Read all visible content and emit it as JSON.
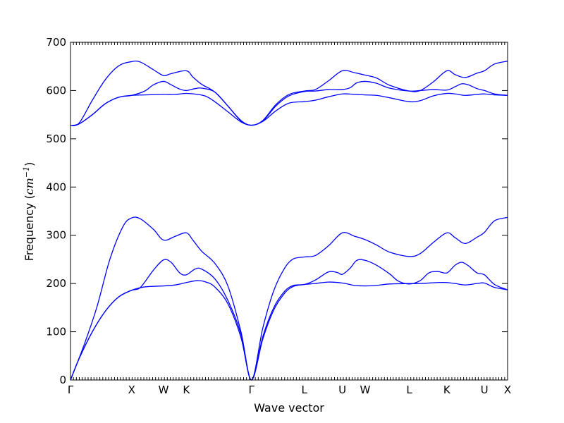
{
  "chart_data": {
    "type": "line",
    "title": "",
    "xlabel": "Wave vector",
    "ylabel": "Frequency",
    "ylabel_unit": "cm",
    "ylabel_unit_exp": "−1",
    "ylim": [
      0,
      700
    ],
    "yticks": [
      0,
      100,
      200,
      300,
      400,
      500,
      600,
      700
    ],
    "xlim": [
      0,
      100
    ],
    "grid": false,
    "legend": "none",
    "line_color": "#0000ff",
    "xticks": [
      {
        "label": "Γ",
        "x": 0
      },
      {
        "label": "X",
        "x": 14.0
      },
      {
        "label": "W",
        "x": 21.3
      },
      {
        "label": "K",
        "x": 26.5
      },
      {
        "label": "Γ",
        "x": 41.4
      },
      {
        "label": "L",
        "x": 53.5
      },
      {
        "label": "U",
        "x": 62.2
      },
      {
        "label": "W",
        "x": 67.4
      },
      {
        "label": "L",
        "x": 77.5
      },
      {
        "label": "K",
        "x": 86.1
      },
      {
        "label": "U",
        "x": 94.7
      },
      {
        "label": "X",
        "x": 100
      }
    ],
    "series": [
      {
        "values": [
          [
            0,
            0
          ],
          [
            3,
            70
          ],
          [
            6,
            150
          ],
          [
            9,
            250
          ],
          [
            12,
            318
          ],
          [
            14,
            336
          ],
          [
            16,
            334
          ],
          [
            19,
            312
          ],
          [
            21.3,
            290
          ],
          [
            24,
            298
          ],
          [
            26.5,
            305
          ],
          [
            28,
            290
          ],
          [
            30,
            267
          ],
          [
            33,
            242
          ],
          [
            36,
            195
          ],
          [
            39,
            100
          ],
          [
            41.4,
            0
          ],
          [
            44,
            108
          ],
          [
            46.5,
            185
          ],
          [
            49,
            232
          ],
          [
            51,
            251
          ],
          [
            53.5,
            255
          ],
          [
            56,
            258
          ],
          [
            59,
            278
          ],
          [
            62.2,
            305
          ],
          [
            65,
            298
          ],
          [
            67.4,
            291
          ],
          [
            70,
            280
          ],
          [
            73,
            265
          ],
          [
            77.5,
            256
          ],
          [
            80,
            262
          ],
          [
            83,
            285
          ],
          [
            86.1,
            305
          ],
          [
            88,
            295
          ],
          [
            90.3,
            283
          ],
          [
            93,
            296
          ],
          [
            94.7,
            306
          ],
          [
            97,
            330
          ],
          [
            100,
            337
          ]
        ]
      },
      {
        "values": [
          [
            0,
            0
          ],
          [
            2,
            45
          ],
          [
            5,
            100
          ],
          [
            8,
            143
          ],
          [
            11,
            172
          ],
          [
            14,
            186
          ],
          [
            16,
            192
          ],
          [
            19,
            228
          ],
          [
            21.3,
            249
          ],
          [
            23,
            244
          ],
          [
            25,
            222
          ],
          [
            26.5,
            218
          ],
          [
            28.5,
            230
          ],
          [
            30,
            230
          ],
          [
            33,
            210
          ],
          [
            36,
            165
          ],
          [
            39,
            95
          ],
          [
            41.4,
            0
          ],
          [
            44,
            90
          ],
          [
            46.5,
            150
          ],
          [
            49,
            184
          ],
          [
            51,
            196
          ],
          [
            53.5,
            198
          ],
          [
            56,
            207
          ],
          [
            59,
            224
          ],
          [
            61,
            223
          ],
          [
            62.2,
            219
          ],
          [
            64,
            232
          ],
          [
            65.5,
            248
          ],
          [
            67.4,
            248
          ],
          [
            70,
            238
          ],
          [
            73,
            220
          ],
          [
            75,
            205
          ],
          [
            77.5,
            199
          ],
          [
            80,
            206
          ],
          [
            82,
            222
          ],
          [
            84,
            225
          ],
          [
            86.1,
            222
          ],
          [
            88,
            238
          ],
          [
            89.5,
            244
          ],
          [
            91,
            237
          ],
          [
            93,
            222
          ],
          [
            94.7,
            218
          ],
          [
            97,
            198
          ],
          [
            100,
            187
          ]
        ]
      },
      {
        "values": [
          [
            0,
            0
          ],
          [
            2,
            45
          ],
          [
            5,
            100
          ],
          [
            8,
            143
          ],
          [
            11,
            172
          ],
          [
            14,
            186
          ],
          [
            17,
            193
          ],
          [
            21.3,
            195
          ],
          [
            24,
            197
          ],
          [
            26.5,
            202
          ],
          [
            29,
            206
          ],
          [
            31,
            203
          ],
          [
            33,
            193
          ],
          [
            36,
            158
          ],
          [
            39,
            88
          ],
          [
            41.4,
            0
          ],
          [
            44,
            85
          ],
          [
            46.5,
            145
          ],
          [
            49,
            180
          ],
          [
            51,
            194
          ],
          [
            53.5,
            198
          ],
          [
            56,
            200
          ],
          [
            59,
            203
          ],
          [
            62.2,
            201
          ],
          [
            65,
            196
          ],
          [
            67.4,
            195
          ],
          [
            70,
            196
          ],
          [
            73,
            199
          ],
          [
            77.5,
            200
          ],
          [
            80,
            200
          ],
          [
            84,
            202
          ],
          [
            86.1,
            202
          ],
          [
            88,
            200
          ],
          [
            90.3,
            197
          ],
          [
            93,
            200
          ],
          [
            94.7,
            201
          ],
          [
            97,
            192
          ],
          [
            100,
            187
          ]
        ]
      },
      {
        "values": [
          [
            0,
            527
          ],
          [
            2,
            533
          ],
          [
            5,
            580
          ],
          [
            8,
            623
          ],
          [
            11,
            651
          ],
          [
            14,
            660
          ],
          [
            16,
            659
          ],
          [
            19,
            643
          ],
          [
            21.3,
            631
          ],
          [
            23,
            635
          ],
          [
            26.5,
            641
          ],
          [
            28,
            628
          ],
          [
            30,
            613
          ],
          [
            33,
            597
          ],
          [
            36,
            568
          ],
          [
            39,
            538
          ],
          [
            41.4,
            528
          ],
          [
            44,
            538
          ],
          [
            47,
            571
          ],
          [
            50,
            592
          ],
          [
            53.5,
            599
          ],
          [
            56,
            602
          ],
          [
            59,
            620
          ],
          [
            62.2,
            641
          ],
          [
            65,
            637
          ],
          [
            67.4,
            632
          ],
          [
            70,
            626
          ],
          [
            73,
            611
          ],
          [
            77.5,
            599
          ],
          [
            80,
            600
          ],
          [
            83,
            618
          ],
          [
            86.1,
            641
          ],
          [
            88,
            633
          ],
          [
            90.3,
            627
          ],
          [
            93,
            636
          ],
          [
            94.7,
            641
          ],
          [
            97,
            655
          ],
          [
            100,
            661
          ]
        ]
      },
      {
        "values": [
          [
            0,
            527
          ],
          [
            2,
            531
          ],
          [
            5,
            550
          ],
          [
            8,
            573
          ],
          [
            11,
            586
          ],
          [
            14,
            590
          ],
          [
            17,
            599
          ],
          [
            19,
            612
          ],
          [
            21.3,
            619
          ],
          [
            23,
            612
          ],
          [
            25,
            603
          ],
          [
            26.5,
            600
          ],
          [
            28.5,
            604
          ],
          [
            30,
            605
          ],
          [
            33,
            597
          ],
          [
            36,
            568
          ],
          [
            39,
            537
          ],
          [
            41.4,
            528
          ],
          [
            44,
            537
          ],
          [
            47,
            568
          ],
          [
            50,
            589
          ],
          [
            53.5,
            598
          ],
          [
            56,
            599
          ],
          [
            59,
            602
          ],
          [
            62.2,
            602
          ],
          [
            64,
            606
          ],
          [
            65.5,
            616
          ],
          [
            67.4,
            619
          ],
          [
            70,
            615
          ],
          [
            73,
            605
          ],
          [
            77.5,
            599
          ],
          [
            80,
            600
          ],
          [
            83,
            602
          ],
          [
            86.1,
            601
          ],
          [
            88,
            608
          ],
          [
            89.5,
            614
          ],
          [
            91,
            612
          ],
          [
            93,
            604
          ],
          [
            94.7,
            600
          ],
          [
            97,
            593
          ],
          [
            100,
            590
          ]
        ]
      },
      {
        "values": [
          [
            0,
            527
          ],
          [
            2,
            531
          ],
          [
            5,
            550
          ],
          [
            8,
            573
          ],
          [
            11,
            586
          ],
          [
            14,
            590
          ],
          [
            17,
            591
          ],
          [
            21.3,
            592
          ],
          [
            24,
            592
          ],
          [
            26.5,
            594
          ],
          [
            29,
            592
          ],
          [
            31,
            588
          ],
          [
            33,
            577
          ],
          [
            36,
            556
          ],
          [
            39,
            535
          ],
          [
            41.4,
            528
          ],
          [
            44,
            536
          ],
          [
            47,
            558
          ],
          [
            50,
            574
          ],
          [
            53.5,
            577
          ],
          [
            56,
            580
          ],
          [
            59,
            587
          ],
          [
            62.2,
            593
          ],
          [
            65,
            592
          ],
          [
            67.4,
            591
          ],
          [
            70,
            590
          ],
          [
            73,
            585
          ],
          [
            77.5,
            577
          ],
          [
            80,
            579
          ],
          [
            83,
            589
          ],
          [
            86.1,
            594
          ],
          [
            88,
            593
          ],
          [
            90.3,
            590
          ],
          [
            93,
            592
          ],
          [
            94.7,
            593
          ],
          [
            97,
            591
          ],
          [
            100,
            590
          ]
        ]
      }
    ]
  }
}
